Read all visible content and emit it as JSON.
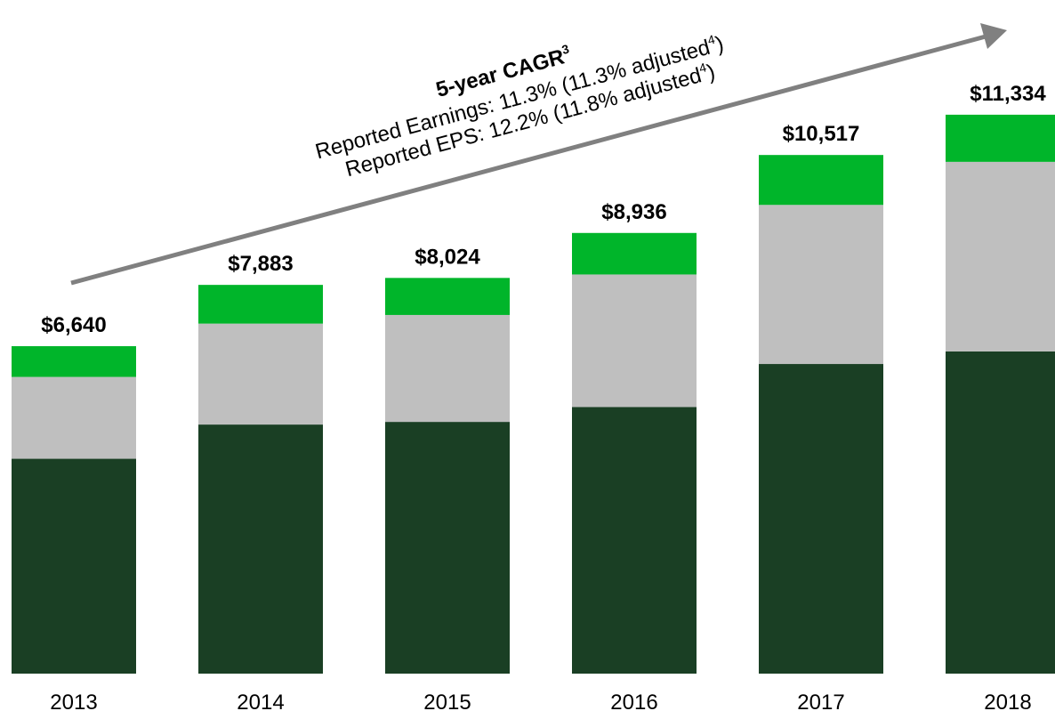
{
  "chart_data": {
    "type": "stacked_bar",
    "categories": [
      "2013",
      "2014",
      "2015",
      "2016",
      "2017",
      "2018"
    ],
    "series": [
      {
        "color": "#1a3f24",
        "values": [
          4357,
          5051,
          5105,
          5408,
          6279,
          6534
        ]
      },
      {
        "color": "#bfbfbf",
        "values": [
          1660,
          2047,
          2168,
          2686,
          3226,
          3844
        ]
      },
      {
        "color": "#00b52a",
        "values": [
          623,
          785,
          751,
          842,
          1012,
          956
        ]
      }
    ],
    "totals": [
      6640,
      7883,
      8024,
      8936,
      10517,
      11334
    ],
    "total_labels": [
      "$6,640",
      "$7,883",
      "$8,024",
      "$8,936",
      "$10,517",
      "$11,334"
    ],
    "ylim": [
      0,
      13660
    ],
    "annotation": {
      "title": "5-year CAGR",
      "title_sup": "3",
      "lines": [
        {
          "text": "Reported Earnings: 11.3% (11.3% adjusted",
          "sup": "4",
          "end": ")"
        },
        {
          "text": "Reported EPS:  12.2% (11.8% adjusted",
          "sup": "4",
          "end": ")"
        }
      ]
    }
  }
}
